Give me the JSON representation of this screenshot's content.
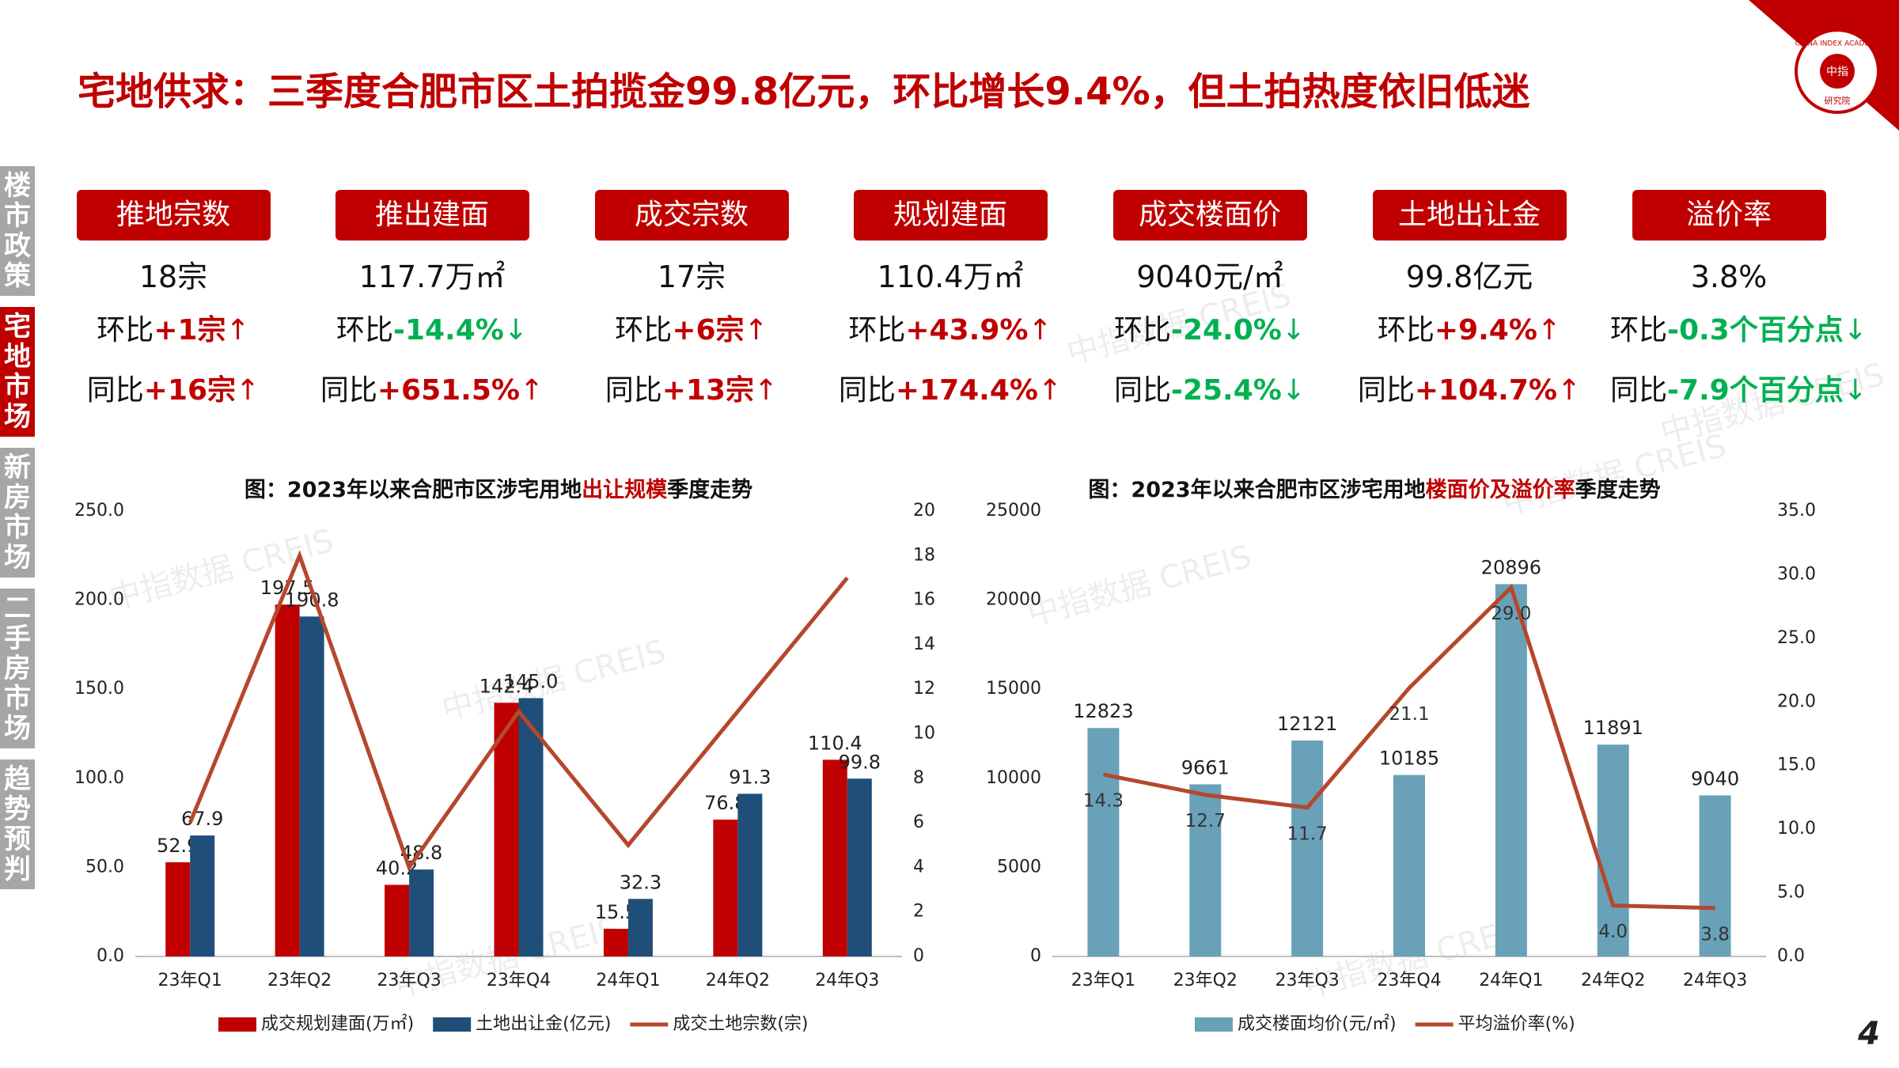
{
  "title": "宅地供求：三季度合肥市区土拍揽金99.8亿元，环比增长9.4%，但土拍热度依旧低迷",
  "logo": {
    "en": "CHINA INDEX ACADEMY",
    "cn": "中指",
    "sub": "研究院"
  },
  "watermark": "中指数据 CREIS",
  "sidebar": [
    {
      "label": "楼市政策"
    },
    {
      "label": "宅地市场",
      "active": true
    },
    {
      "label": "新房市场"
    },
    {
      "label": "二手房市场"
    },
    {
      "label": "趋势预判"
    }
  ],
  "kpis": [
    {
      "name": "推地宗数",
      "value": "18宗",
      "hb_label": "环比",
      "hb_value": "+1宗",
      "hb_arrow": "↑",
      "tb_label": "同比",
      "tb_value": "+16宗",
      "tb_arrow": "↑"
    },
    {
      "name": "推出建面",
      "value": "117.7万㎡",
      "hb_label": "环比",
      "hb_value": "-14.4%",
      "hb_arrow": "↓",
      "tb_label": "同比",
      "tb_value": "+651.5%",
      "tb_arrow": "↑"
    },
    {
      "name": "成交宗数",
      "value": "17宗",
      "hb_label": "环比",
      "hb_value": "+6宗",
      "hb_arrow": "↑",
      "tb_label": "同比",
      "tb_value": "+13宗",
      "tb_arrow": "↑"
    },
    {
      "name": "规划建面",
      "value": "110.4万㎡",
      "hb_label": "环比",
      "hb_value": "+43.9%",
      "hb_arrow": "↑",
      "tb_label": "同比",
      "tb_value": "+174.4%",
      "tb_arrow": "↑"
    },
    {
      "name": "成交楼面价",
      "value": "9040元/㎡",
      "hb_label": "环比",
      "hb_value": "-24.0%",
      "hb_arrow": "↓",
      "tb_label": "同比",
      "tb_value": "-25.4%",
      "tb_arrow": "↓"
    },
    {
      "name": "土地出让金",
      "value": "99.8亿元",
      "hb_label": "环比",
      "hb_value": "+9.4%",
      "hb_arrow": "↑",
      "tb_label": "同比",
      "tb_value": "+104.7%",
      "tb_arrow": "↑"
    },
    {
      "name": "溢价率",
      "value": "3.8%",
      "hb_label": "环比",
      "hb_value": "-0.3个百分点",
      "hb_arrow": "↓",
      "tb_label": "同比",
      "tb_value": "-7.9个百分点",
      "tb_arrow": "↓"
    }
  ],
  "page_number": "4",
  "chart_data": [
    {
      "type": "bar",
      "title_parts": [
        "图：2023年以来合肥市区涉宅用地",
        "出让规模",
        "季度走势"
      ],
      "title_highlight": 1,
      "categories": [
        "23年Q1",
        "23年Q2",
        "23年Q3",
        "23年Q4",
        "24年Q1",
        "24年Q2",
        "24年Q3"
      ],
      "series": [
        {
          "name": "成交规划建面(万㎡)",
          "color": "#c00000",
          "values": [
            52.9,
            197.5,
            40.2,
            142.4,
            15.5,
            76.8,
            110.4
          ]
        },
        {
          "name": "土地出让金(亿元)",
          "color": "#1f4e79",
          "values": [
            67.9,
            190.8,
            48.8,
            145.0,
            32.3,
            91.3,
            99.8
          ],
          "value_labels": [
            "67.9",
            "190.8",
            "48.8",
            "145.0",
            "32.3",
            "91.3",
            "99.8"
          ]
        },
        {
          "name": "成交土地宗数(宗)",
          "color": "#b5472c",
          "type": "line",
          "axis": "y2",
          "values": [
            6,
            18,
            4,
            11,
            5,
            11,
            17
          ]
        }
      ],
      "ylim": [
        0,
        250
      ],
      "yticks": [
        {
          "value": 0,
          "label": "0.0"
        },
        {
          "value": 50,
          "label": "50.0"
        },
        {
          "value": 100,
          "label": "100.0"
        },
        {
          "value": 150,
          "label": "150.0"
        },
        {
          "value": 200,
          "label": "200.0"
        },
        {
          "value": 250,
          "label": "250.0"
        }
      ],
      "y2lim": [
        0,
        20
      ],
      "y2ticks": [
        0,
        2,
        4,
        6,
        8,
        10,
        12,
        14,
        16,
        18,
        20
      ]
    },
    {
      "type": "bar",
      "title_parts": [
        "图：2023年以来合肥市区涉宅用地",
        "楼面价及溢价率",
        "季度走势"
      ],
      "title_highlight": 1,
      "categories": [
        "23年Q1",
        "23年Q2",
        "23年Q3",
        "23年Q4",
        "24年Q1",
        "24年Q2",
        "24年Q3"
      ],
      "series": [
        {
          "name": "成交楼面均价(元/㎡)",
          "color": "#69a1b8",
          "values": [
            12823,
            9661,
            12121,
            10185,
            20896,
            11891,
            9040
          ]
        },
        {
          "name": "平均溢价率(%)",
          "color": "#b5472c",
          "type": "line",
          "axis": "y2",
          "values": [
            14.3,
            12.7,
            11.7,
            21.1,
            29.0,
            4.0,
            3.8
          ],
          "value_labels": [
            "14.3",
            "12.7",
            "11.7",
            "21.1",
            "29.0",
            "4.0",
            "3.8"
          ]
        }
      ],
      "ylim": [
        0,
        25000
      ],
      "yticks": [
        0,
        5000,
        10000,
        15000,
        20000,
        25000
      ],
      "y2lim": [
        0,
        35
      ],
      "y2ticks": [
        {
          "value": 0,
          "label": "0.0"
        },
        {
          "value": 5,
          "label": "5.0"
        },
        {
          "value": 10,
          "label": "10.0"
        },
        {
          "value": 15,
          "label": "15.0"
        },
        {
          "value": 20,
          "label": "20.0"
        },
        {
          "value": 25,
          "label": "25.0"
        },
        {
          "value": 30,
          "label": "30.0"
        },
        {
          "value": 35,
          "label": "35.0"
        }
      ]
    }
  ]
}
